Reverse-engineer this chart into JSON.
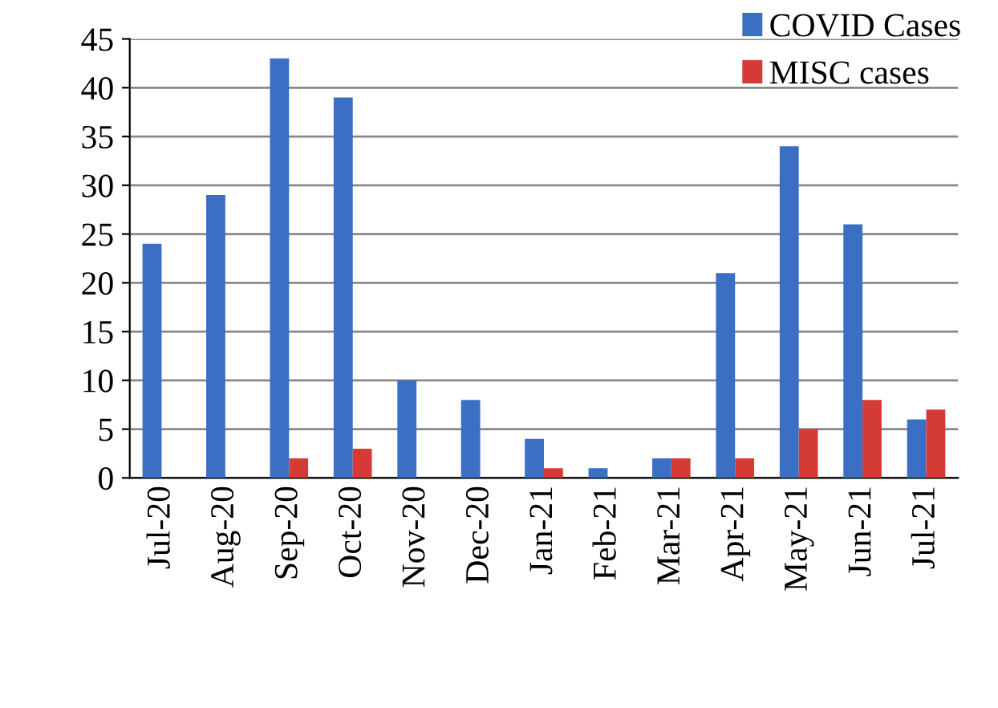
{
  "chart_data": {
    "type": "bar",
    "categories": [
      "Jul-20",
      "Aug-20",
      "Sep-20",
      "Oct-20",
      "Nov-20",
      "Dec-20",
      "Jan-21",
      "Feb-21",
      "Mar-21",
      "Apr-21",
      "May-21",
      "Jun-21",
      "Jul-21"
    ],
    "series": [
      {
        "name": "COVID Cases",
        "color": "#3a6fc4",
        "values": [
          24,
          29,
          43,
          39,
          10,
          8,
          4,
          1,
          2,
          21,
          34,
          26,
          6
        ]
      },
      {
        "name": "MISC cases",
        "color": "#d43a36",
        "values": [
          0,
          0,
          2,
          3,
          0,
          0,
          1,
          0,
          2,
          2,
          5,
          8,
          7
        ]
      }
    ],
    "ylim": [
      0,
      45
    ],
    "yticks": [
      0,
      5,
      10,
      15,
      20,
      25,
      30,
      35,
      40,
      45
    ],
    "grid": "y",
    "legend": "top right"
  }
}
